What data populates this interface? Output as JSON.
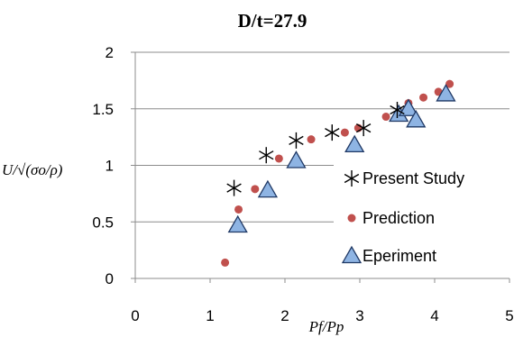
{
  "chart_data": {
    "type": "scatter",
    "title": "D/t=27.9",
    "xlabel": "Pf/Pp",
    "ylabel": "U/√(σo/ρ)",
    "xlim": [
      0,
      5
    ],
    "ylim": [
      0,
      2
    ],
    "xticks": [
      0,
      1,
      2,
      3,
      4,
      5
    ],
    "yticks": [
      0,
      0.5,
      1,
      1.5,
      2
    ],
    "x_tick_labels": [
      "0",
      "1",
      "2",
      "3",
      "4",
      "5"
    ],
    "y_tick_labels": [
      "0",
      "0.5",
      "1",
      "1.5",
      "2"
    ],
    "grid": "horizontal",
    "legend_position": "right",
    "series": [
      {
        "name": "Present Study",
        "marker": "asterisk",
        "color": "#000000",
        "points": [
          [
            1.32,
            0.8
          ],
          [
            1.75,
            1.09
          ],
          [
            2.15,
            1.22
          ],
          [
            2.63,
            1.29
          ],
          [
            3.05,
            1.33
          ],
          [
            3.5,
            1.49
          ]
        ]
      },
      {
        "name": "Prediction",
        "marker": "circle",
        "color": "#c0504d",
        "points": [
          [
            1.2,
            0.14
          ],
          [
            1.38,
            0.61
          ],
          [
            1.6,
            0.79
          ],
          [
            1.92,
            1.06
          ],
          [
            2.35,
            1.23
          ],
          [
            2.8,
            1.29
          ],
          [
            2.98,
            1.33
          ],
          [
            3.35,
            1.43
          ],
          [
            3.65,
            1.55
          ],
          [
            3.85,
            1.6
          ],
          [
            4.05,
            1.65
          ],
          [
            4.2,
            1.72
          ]
        ]
      },
      {
        "name": "Eperiment",
        "marker": "triangle",
        "color": "#8eb4e3",
        "points": [
          [
            1.37,
            0.47
          ],
          [
            1.77,
            0.78
          ],
          [
            2.15,
            1.04
          ],
          [
            2.93,
            1.18
          ],
          [
            3.52,
            1.45
          ],
          [
            3.65,
            1.5
          ],
          [
            3.75,
            1.4
          ],
          [
            4.15,
            1.63
          ]
        ]
      }
    ]
  }
}
